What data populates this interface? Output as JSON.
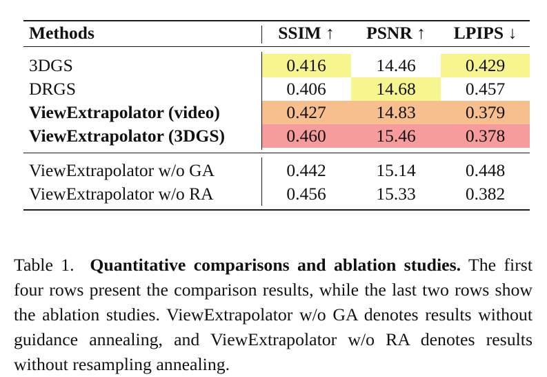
{
  "table": {
    "headers": {
      "method": "Methods",
      "ssim": "SSIM ↑",
      "psnr": "PSNR ↑",
      "lpips": "LPIPS ↓"
    },
    "comparison_rows": [
      {
        "method": "3DGS",
        "ssim": "0.416",
        "psnr": "14.46",
        "lpips": "0.429"
      },
      {
        "method": "DRGS",
        "ssim": "0.406",
        "psnr": "14.68",
        "lpips": "0.457"
      },
      {
        "method": "ViewExtrapolator (video)",
        "ssim": "0.427",
        "psnr": "14.83",
        "lpips": "0.379"
      },
      {
        "method": "ViewExtrapolator (3DGS)",
        "ssim": "0.460",
        "psnr": "15.46",
        "lpips": "0.378"
      }
    ],
    "ablation_rows": [
      {
        "method": "ViewExtrapolator w/o GA",
        "ssim": "0.442",
        "psnr": "15.14",
        "lpips": "0.448"
      },
      {
        "method": "ViewExtrapolator w/o RA",
        "ssim": "0.456",
        "psnr": "15.33",
        "lpips": "0.382"
      }
    ],
    "highlight_colors": {
      "first": "#f79c9c",
      "second": "#f7bf8e",
      "third": "#f7f58e"
    }
  },
  "caption": {
    "label": "Table 1.",
    "title": "Quantitative comparisons and ablation studies.",
    "text": "The first four rows present the comparison results, while the last two rows show the ablation studies. ViewExtrapolator w/o GA denotes results without guidance annealing, and ViewExtrapolator w/o RA denotes results without resampling annealing."
  }
}
